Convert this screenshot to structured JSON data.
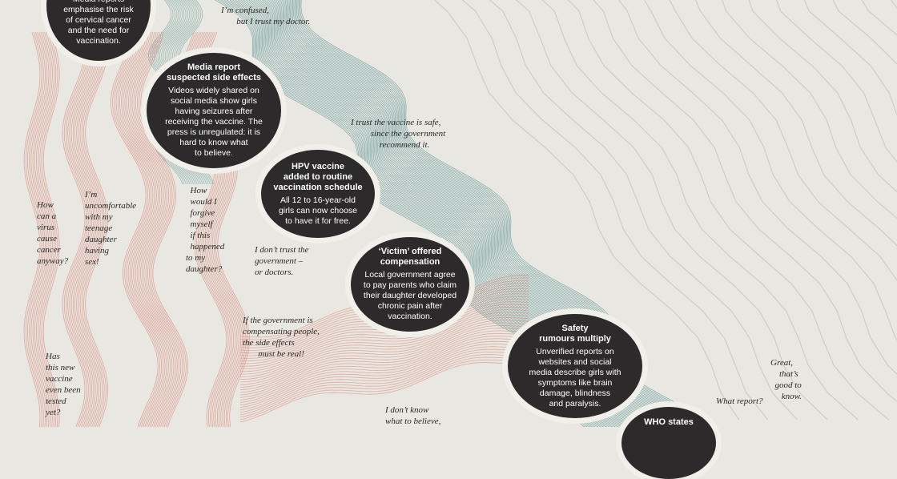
{
  "colors": {
    "background": "#e9e7e1",
    "teal_stream": "#6e9fa0",
    "red_stream": "#d9897d",
    "faint_lines": "#c9c9c6",
    "bubble": "#2c2a2b",
    "bubble_text": "#ffffff"
  },
  "bubbles": {
    "b1": {
      "title": "",
      "body": "Media reports\nemphasise the risk\nof cervical cancer\nand the need for\nvaccination."
    },
    "b2": {
      "title": "Media report\nsuspected side effects",
      "body": "Videos widely shared on\nsocial media show girls\nhaving seizures after\nreceiving the vaccine. The\npress is unregulated: it is\nhard to know what\nto believe."
    },
    "b3": {
      "title": "HPV vaccine\nadded to routine\nvaccination schedule",
      "body": "All 12 to 16-year-old\ngirls can now choose\nto have it for free."
    },
    "b4": {
      "title": "‘Victim’ offered\ncompensation",
      "body": "Local government agree\nto pay parents who claim\ntheir daughter developed\nchronic pain after\nvaccination."
    },
    "b5": {
      "title": "Safety\nrumours multiply",
      "body": "Unverified reports on\nwebsites and social\nmedia describe girls with\nsymptoms like brain\ndamage, blindness\nand paralysis."
    },
    "b6": {
      "title": "WHO states",
      "body": ""
    }
  },
  "quotes": {
    "confused": "I’m confused,\n       but I trust my doctor.",
    "trust_safe": "I trust the vaccine is safe,\n         since the government\n             recommend it.",
    "how_virus": "How\ncan a\nvirus\ncause\ncancer\nanyway?",
    "uncomfortable": "I’m\nuncomfortable\nwith my\nteenage\ndaughter\nhaving\nsex!",
    "forgive": "  How\n  would I\n  forgive\n  myself\n  if this\n  happened\nto my\ndaughter?",
    "dont_trust": "I don’t trust the\ngovernment –\nor doctors.",
    "compensating": "If the government is\ncompensating people,\nthe side effects\n       must be real!",
    "tested": "Has\nthis new\nvaccine\neven been\ntested\nyet?",
    "dont_know": "I don’t know\nwhat to believe,",
    "what_report": "What report?",
    "great": "Great,\n    that’s\n  good to\n     know."
  }
}
